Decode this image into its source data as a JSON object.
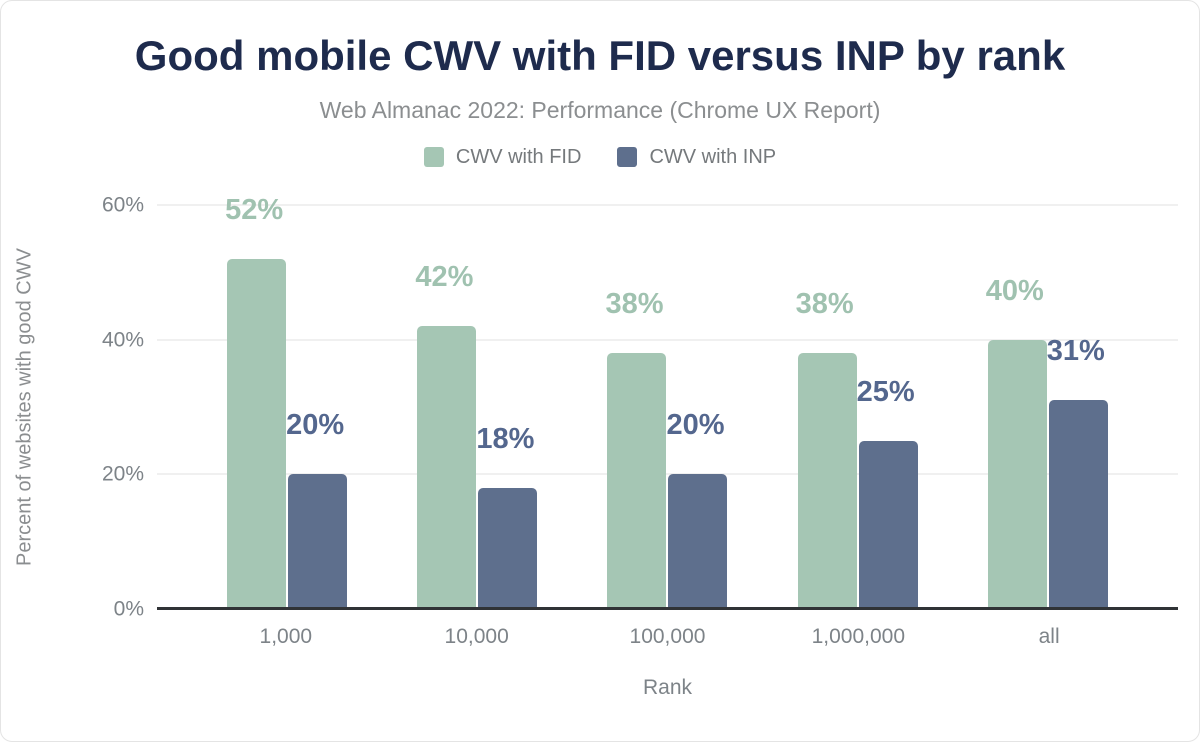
{
  "header": {
    "title": "Good mobile CWV with FID versus INP by rank",
    "subtitle": "Web Almanac 2022: Performance (Chrome UX Report)"
  },
  "chart_data": {
    "type": "bar",
    "title": "Good mobile CWV with FID versus INP by rank",
    "subtitle": "Web Almanac 2022: Performance (Chrome UX Report)",
    "categories": [
      "1,000",
      "10,000",
      "100,000",
      "1,000,000",
      "all"
    ],
    "series": [
      {
        "name": "CWV with FID",
        "color": "#a5c6b4",
        "label_color": "#a0c2b0",
        "values": [
          52,
          42,
          38,
          38,
          40
        ],
        "labels": [
          "52%",
          "42%",
          "38%",
          "38%",
          "40%"
        ]
      },
      {
        "name": "CWV with INP",
        "color": "#5e6f8d",
        "label_color": "#54678e",
        "values": [
          20,
          18,
          20,
          25,
          31
        ],
        "labels": [
          "20%",
          "18%",
          "20%",
          "25%",
          "31%"
        ]
      }
    ],
    "xlabel": "Rank",
    "ylabel": "Percent of websites with good CWV",
    "ylim": [
      0,
      60
    ],
    "yticks": [
      0,
      20,
      40,
      60
    ],
    "ytick_labels": [
      "0%",
      "20%",
      "40%",
      "60%"
    ],
    "grid": true,
    "legend_position": "top",
    "colors": {
      "title": "#1e2b4d",
      "subtitle": "#8b8e90",
      "tick_text": "#7d8388",
      "gridline": "#f0f0f0",
      "axis_line": "#303336",
      "background": "#ffffff"
    }
  }
}
